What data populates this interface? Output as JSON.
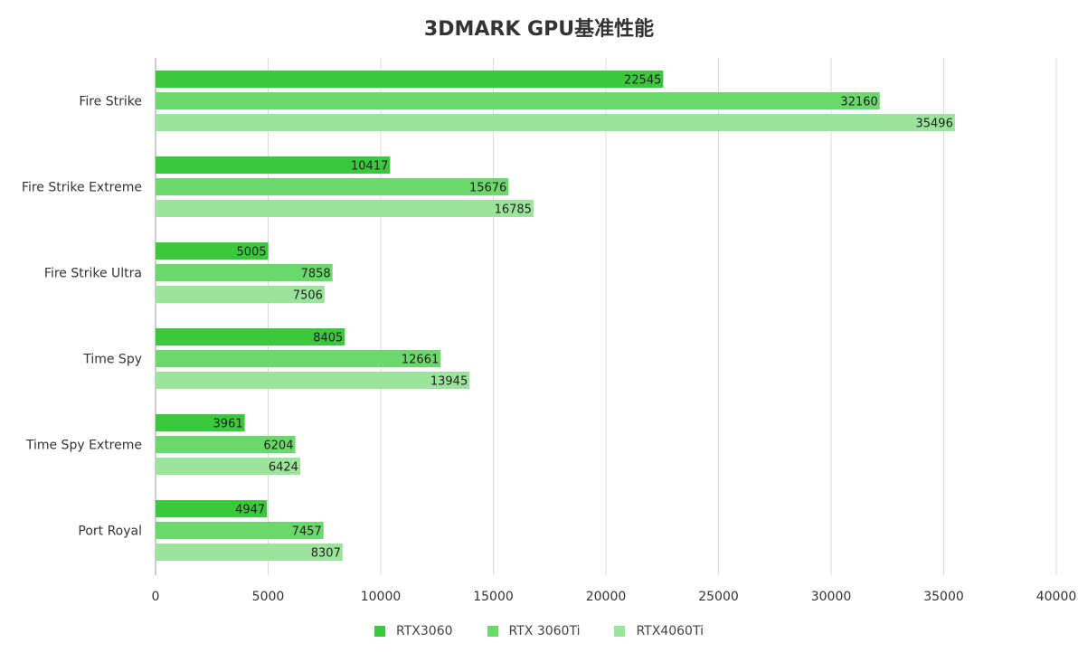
{
  "chart_data": {
    "type": "bar",
    "orientation": "horizontal",
    "title": "3DMARK GPU基准性能",
    "categories": [
      "Fire Strike",
      "Fire Strike Extreme",
      "Fire Strike Ultra",
      "Time Spy",
      "Time Spy Extreme",
      "Port Royal"
    ],
    "series": [
      {
        "name": "RTX3060",
        "color": "#3cc83c",
        "values": [
          22545,
          10417,
          5005,
          8405,
          3961,
          4947
        ]
      },
      {
        "name": "RTX 3060Ti",
        "color": "#6ad86a",
        "values": [
          32160,
          15676,
          7858,
          12661,
          6204,
          7457
        ]
      },
      {
        "name": "RTX4060Ti",
        "color": "#9ce49c",
        "values": [
          35496,
          16785,
          7506,
          13945,
          6424,
          8307
        ]
      }
    ],
    "xlim": [
      0,
      40000
    ],
    "xticks": [
      "0",
      "5000",
      "10000",
      "15000",
      "20000",
      "25000",
      "30000",
      "35000",
      "40000"
    ],
    "grid": "vertical",
    "legend_position": "bottom-center",
    "data_labels": true
  }
}
